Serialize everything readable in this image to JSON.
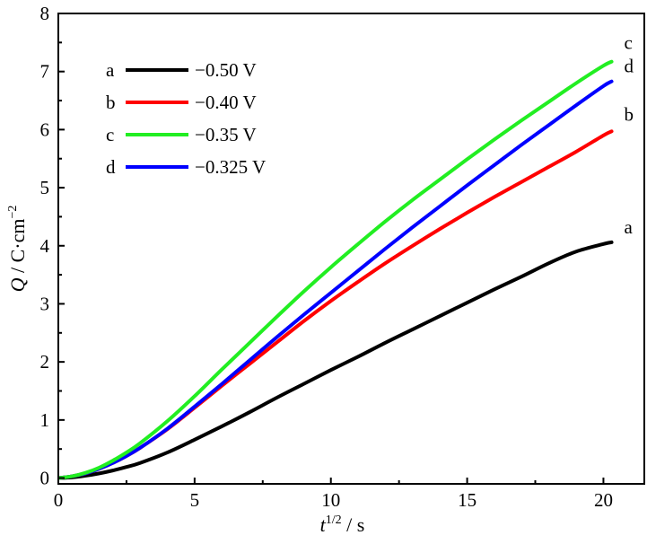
{
  "chart_data": {
    "type": "line",
    "xlabel": {
      "var": "t",
      "sup": "1/2",
      "unit": " / s"
    },
    "ylabel": {
      "var": "Q",
      "unit": " / C·cm",
      "sup": "−2"
    },
    "xlim": [
      0,
      21.5
    ],
    "ylim": [
      -0.1,
      8
    ],
    "xticks": [
      0,
      5,
      10,
      15,
      20
    ],
    "yticks": [
      0,
      1,
      2,
      3,
      4,
      5,
      6,
      7,
      8
    ],
    "legend_position": "top-left",
    "series": [
      {
        "id": "a",
        "label": "a",
        "name": "−0.50 V",
        "color": "#000000",
        "x": [
          0,
          0.5,
          1,
          1.5,
          2,
          2.5,
          3,
          4,
          5,
          6,
          7,
          8,
          9,
          10,
          11,
          12,
          13,
          14,
          15,
          16,
          17,
          18,
          19,
          20,
          20.3
        ],
        "y": [
          0,
          0.01,
          0.04,
          0.08,
          0.13,
          0.19,
          0.26,
          0.44,
          0.66,
          0.89,
          1.13,
          1.38,
          1.62,
          1.86,
          2.09,
          2.33,
          2.56,
          2.79,
          3.02,
          3.25,
          3.47,
          3.7,
          3.9,
          4.03,
          4.06
        ]
      },
      {
        "id": "b",
        "label": "b",
        "name": "−0.40 V",
        "color": "#ff0000",
        "x": [
          0,
          0.5,
          1,
          1.5,
          2,
          2.5,
          3,
          4,
          5,
          6,
          7,
          8,
          9,
          10,
          11,
          12,
          13,
          14,
          15,
          16,
          17,
          18,
          19,
          20,
          20.3
        ],
        "y": [
          0,
          0.03,
          0.08,
          0.16,
          0.26,
          0.38,
          0.52,
          0.84,
          1.21,
          1.59,
          1.96,
          2.33,
          2.7,
          3.05,
          3.38,
          3.7,
          4.0,
          4.29,
          4.57,
          4.84,
          5.1,
          5.36,
          5.62,
          5.9,
          5.97
        ]
      },
      {
        "id": "c",
        "label": "c",
        "name": "−0.35 V",
        "color": "#22ee22",
        "x": [
          0,
          0.5,
          1,
          1.5,
          2,
          2.5,
          3,
          4,
          5,
          6,
          7,
          8,
          9,
          10,
          11,
          12,
          13,
          14,
          15,
          16,
          17,
          18,
          19,
          20,
          20.3
        ],
        "y": [
          0,
          0.03,
          0.09,
          0.18,
          0.3,
          0.44,
          0.6,
          0.98,
          1.41,
          1.87,
          2.32,
          2.77,
          3.21,
          3.63,
          4.03,
          4.42,
          4.79,
          5.14,
          5.49,
          5.83,
          6.16,
          6.48,
          6.8,
          7.1,
          7.17
        ]
      },
      {
        "id": "d",
        "label": "d",
        "name": "−0.325 V",
        "color": "#0000ff",
        "x": [
          0,
          0.5,
          1,
          1.5,
          2,
          2.5,
          3,
          4,
          5,
          6,
          7,
          8,
          9,
          10,
          11,
          12,
          13,
          14,
          15,
          16,
          17,
          18,
          19,
          20,
          20.3
        ],
        "y": [
          0,
          0.03,
          0.08,
          0.16,
          0.26,
          0.38,
          0.52,
          0.85,
          1.23,
          1.62,
          2.02,
          2.42,
          2.81,
          3.19,
          3.57,
          3.95,
          4.32,
          4.68,
          5.04,
          5.39,
          5.74,
          6.08,
          6.42,
          6.75,
          6.83
        ]
      }
    ]
  }
}
